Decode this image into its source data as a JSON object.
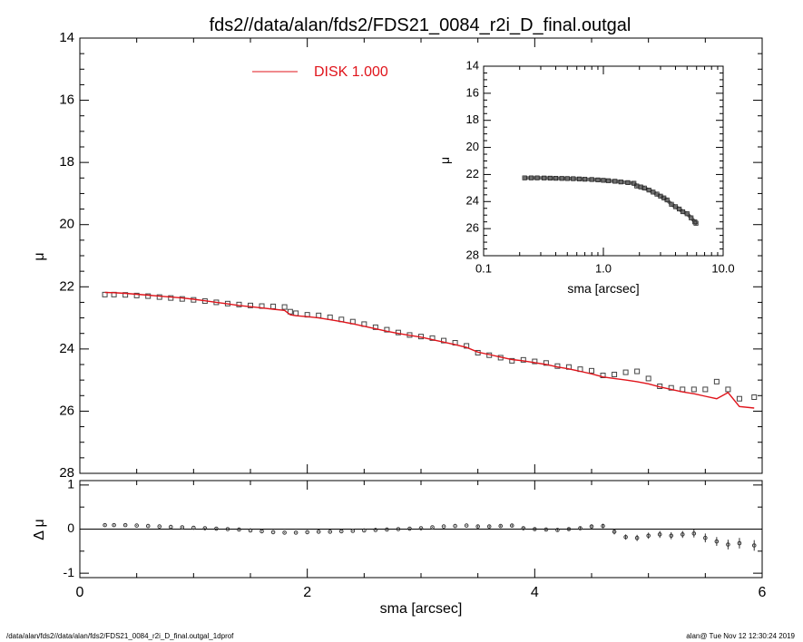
{
  "title": "fds2//data/alan/fds2/FDS21_0084_r2i_D_final.outgal",
  "footer": {
    "left": "/data/alan/fds2//data/alan/fds2/FDS21_0084_r2i_D_final.outgal_1dprof",
    "right": "alan@  Tue Nov 12 12:30:24 2019"
  },
  "legend": {
    "label": "DISK  1.000",
    "color": "#e0141b"
  },
  "chart_data": [
    {
      "type": "scatter",
      "panel": "main",
      "ylabel": "μ",
      "xlim": [
        0,
        6
      ],
      "ylim": [
        28,
        14
      ],
      "yticks": [
        14,
        16,
        18,
        20,
        22,
        24,
        26,
        28
      ],
      "series": [
        {
          "name": "",
          "marker": "square",
          "color": "#444444",
          "x": [
            0.22,
            0.3,
            0.4,
            0.5,
            0.6,
            0.7,
            0.8,
            0.9,
            1.0,
            1.1,
            1.2,
            1.3,
            1.4,
            1.5,
            1.6,
            1.7,
            1.8,
            1.85,
            1.9,
            2.0,
            2.1,
            2.2,
            2.3,
            2.4,
            2.5,
            2.6,
            2.7,
            2.8,
            2.9,
            3.0,
            3.1,
            3.2,
            3.3,
            3.4,
            3.5,
            3.6,
            3.7,
            3.8,
            3.9,
            4.0,
            4.1,
            4.2,
            4.3,
            4.4,
            4.5,
            4.6,
            4.7,
            4.8,
            4.9,
            5.0,
            5.1,
            5.2,
            5.3,
            5.4,
            5.5,
            5.6,
            5.7,
            5.8,
            5.93
          ],
          "y": [
            22.25,
            22.25,
            22.26,
            22.28,
            22.3,
            22.33,
            22.36,
            22.39,
            22.42,
            22.46,
            22.5,
            22.54,
            22.57,
            22.6,
            22.62,
            22.63,
            22.65,
            22.8,
            22.85,
            22.9,
            22.92,
            22.98,
            23.05,
            23.12,
            23.2,
            23.3,
            23.38,
            23.47,
            23.55,
            23.6,
            23.65,
            23.73,
            23.8,
            23.9,
            24.12,
            24.2,
            24.28,
            24.38,
            24.35,
            24.4,
            24.45,
            24.55,
            24.58,
            24.65,
            24.7,
            24.85,
            24.82,
            24.75,
            24.72,
            24.95,
            25.2,
            25.25,
            25.3,
            25.3,
            25.3,
            25.05,
            25.3,
            25.6,
            25.55
          ]
        },
        {
          "name": "DISK  1.000",
          "marker": "line",
          "color": "#e0141b",
          "x": [
            0.22,
            0.3,
            0.4,
            0.5,
            0.6,
            0.7,
            0.8,
            0.9,
            1.0,
            1.1,
            1.2,
            1.3,
            1.4,
            1.5,
            1.6,
            1.7,
            1.8,
            1.85,
            1.9,
            2.0,
            2.1,
            2.2,
            2.3,
            2.4,
            2.5,
            2.6,
            2.7,
            2.8,
            2.9,
            3.0,
            3.1,
            3.2,
            3.3,
            3.4,
            3.5,
            3.6,
            3.7,
            3.8,
            3.9,
            4.0,
            4.1,
            4.2,
            4.3,
            4.4,
            4.5,
            4.6,
            4.7,
            4.8,
            4.9,
            5.0,
            5.1,
            5.2,
            5.3,
            5.4,
            5.5,
            5.6,
            5.7,
            5.8,
            5.93
          ],
          "y": [
            22.18,
            22.19,
            22.21,
            22.24,
            22.27,
            22.3,
            22.33,
            22.36,
            22.4,
            22.45,
            22.5,
            22.55,
            22.6,
            22.64,
            22.68,
            22.72,
            22.76,
            22.9,
            22.93,
            22.96,
            23.0,
            23.06,
            23.12,
            23.19,
            23.27,
            23.35,
            23.43,
            23.5,
            23.56,
            23.62,
            23.7,
            23.78,
            23.86,
            23.95,
            24.1,
            24.18,
            24.26,
            24.34,
            24.38,
            24.44,
            24.5,
            24.58,
            24.64,
            24.72,
            24.8,
            24.9,
            24.95,
            25.0,
            25.05,
            25.12,
            25.22,
            25.3,
            25.38,
            25.44,
            25.52,
            25.6,
            25.4,
            25.85,
            25.9
          ]
        }
      ]
    },
    {
      "type": "scatter",
      "panel": "residual",
      "xlabel": "sma [arcsec]",
      "ylabel": "Δ μ",
      "xlim": [
        0,
        6
      ],
      "ylim": [
        -1.1,
        1.1
      ],
      "xticks": [
        0,
        2,
        4,
        6
      ],
      "yticks": [
        -1,
        0,
        1
      ],
      "zero_line": true,
      "series": [
        {
          "name": "",
          "marker": "circle",
          "color": "#333333",
          "x": [
            0.22,
            0.3,
            0.4,
            0.5,
            0.6,
            0.7,
            0.8,
            0.9,
            1.0,
            1.1,
            1.2,
            1.3,
            1.4,
            1.5,
            1.6,
            1.7,
            1.8,
            1.9,
            2.0,
            2.1,
            2.2,
            2.3,
            2.4,
            2.5,
            2.6,
            2.7,
            2.8,
            2.9,
            3.0,
            3.1,
            3.2,
            3.3,
            3.4,
            3.5,
            3.6,
            3.7,
            3.8,
            3.9,
            4.0,
            4.1,
            4.2,
            4.3,
            4.4,
            4.5,
            4.6,
            4.7,
            4.8,
            4.9,
            5.0,
            5.1,
            5.2,
            5.3,
            5.4,
            5.5,
            5.6,
            5.7,
            5.8,
            5.93
          ],
          "y": [
            0.09,
            0.09,
            0.09,
            0.08,
            0.07,
            0.06,
            0.05,
            0.04,
            0.03,
            0.02,
            0.01,
            0.0,
            -0.01,
            -0.03,
            -0.05,
            -0.07,
            -0.08,
            -0.08,
            -0.07,
            -0.06,
            -0.06,
            -0.05,
            -0.04,
            -0.03,
            -0.02,
            -0.01,
            0.0,
            0.01,
            0.02,
            0.04,
            0.06,
            0.07,
            0.08,
            0.06,
            0.06,
            0.07,
            0.08,
            0.02,
            0.0,
            -0.01,
            -0.02,
            0.0,
            0.02,
            0.06,
            0.07,
            -0.06,
            -0.18,
            -0.2,
            -0.15,
            -0.12,
            -0.15,
            -0.12,
            -0.1,
            -0.2,
            -0.28,
            -0.35,
            -0.32,
            -0.37
          ],
          "err": [
            0.01,
            0.01,
            0.01,
            0.01,
            0.01,
            0.01,
            0.01,
            0.01,
            0.01,
            0.01,
            0.01,
            0.01,
            0.01,
            0.01,
            0.01,
            0.01,
            0.01,
            0.01,
            0.01,
            0.01,
            0.01,
            0.01,
            0.01,
            0.01,
            0.01,
            0.01,
            0.01,
            0.01,
            0.01,
            0.01,
            0.01,
            0.01,
            0.01,
            0.02,
            0.02,
            0.02,
            0.02,
            0.02,
            0.02,
            0.02,
            0.02,
            0.03,
            0.03,
            0.04,
            0.05,
            0.06,
            0.06,
            0.07,
            0.07,
            0.08,
            0.08,
            0.08,
            0.09,
            0.1,
            0.1,
            0.11,
            0.12,
            0.12
          ]
        }
      ]
    },
    {
      "type": "scatter",
      "panel": "inset",
      "xscale": "log",
      "xlabel": "sma [arcsec]",
      "ylabel": "μ",
      "xlim": [
        0.1,
        10.0
      ],
      "ylim": [
        28,
        14
      ],
      "xticklabels": [
        "0.1",
        "1.0",
        "10.0"
      ],
      "yticks": [
        14,
        16,
        18,
        20,
        22,
        24,
        26,
        28
      ],
      "series": [
        {
          "name": "",
          "marker": "square",
          "color": "#555555",
          "x": [
            0.22,
            0.25,
            0.28,
            0.32,
            0.36,
            0.4,
            0.45,
            0.5,
            0.56,
            0.63,
            0.7,
            0.8,
            0.9,
            1.0,
            1.1,
            1.25,
            1.4,
            1.6,
            1.8,
            1.9,
            2.05,
            2.2,
            2.4,
            2.6,
            2.8,
            3.0,
            3.2,
            3.4,
            3.7,
            4.0,
            4.3,
            4.6,
            5.0,
            5.4,
            5.8,
            5.93
          ],
          "y": [
            22.25,
            22.25,
            22.25,
            22.26,
            22.27,
            22.28,
            22.29,
            22.3,
            22.31,
            22.33,
            22.35,
            22.37,
            22.4,
            22.43,
            22.46,
            22.5,
            22.55,
            22.6,
            22.65,
            22.85,
            22.92,
            23.0,
            23.15,
            23.3,
            23.45,
            23.6,
            23.73,
            23.88,
            24.2,
            24.38,
            24.55,
            24.75,
            24.9,
            25.2,
            25.5,
            25.6
          ]
        }
      ]
    }
  ]
}
